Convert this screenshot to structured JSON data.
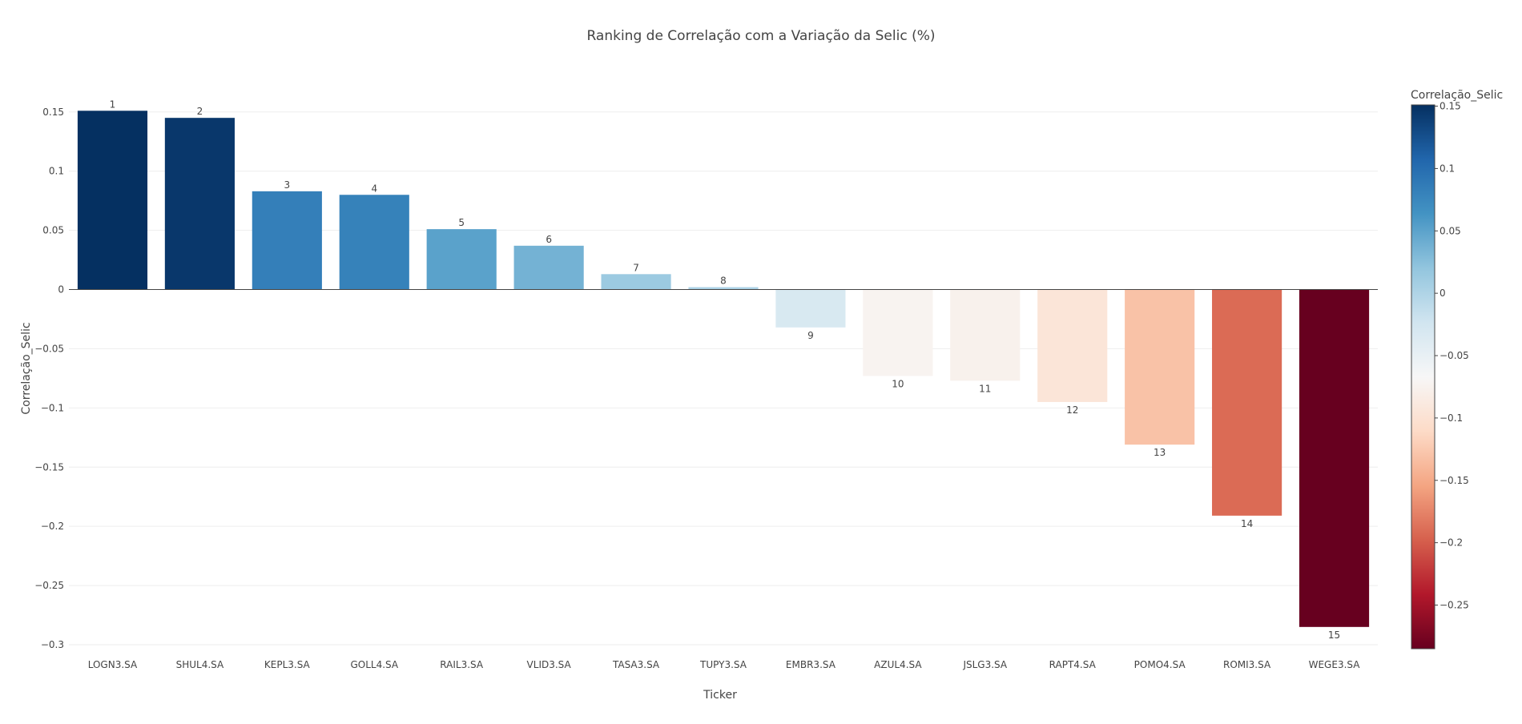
{
  "chart_data": {
    "type": "bar",
    "title": "Ranking de Correlação com a Variação da Selic (%)",
    "xlabel": "Ticker",
    "ylabel": "Correlação_Selic",
    "categories": [
      "LOGN3.SA",
      "SHUL4.SA",
      "KEPL3.SA",
      "GOLL4.SA",
      "RAIL3.SA",
      "VLID3.SA",
      "TASA3.SA",
      "TUPY3.SA",
      "EMBR3.SA",
      "AZUL4.SA",
      "JSLG3.SA",
      "RAPT4.SA",
      "POMO4.SA",
      "ROMI3.SA",
      "WEGE3.SA"
    ],
    "values": [
      0.151,
      0.145,
      0.083,
      0.08,
      0.051,
      0.037,
      0.013,
      0.002,
      -0.032,
      -0.073,
      -0.077,
      -0.095,
      -0.131,
      -0.191,
      -0.285
    ],
    "ranks": [
      "1",
      "2",
      "3",
      "4",
      "5",
      "6",
      "7",
      "8",
      "9",
      "10",
      "11",
      "12",
      "13",
      "14",
      "15"
    ],
    "ylim": [
      -0.3,
      0.16
    ],
    "yticks": [
      0.15,
      0.1,
      0.05,
      0,
      -0.05,
      -0.1,
      -0.15,
      -0.2,
      -0.25,
      -0.3
    ],
    "ytick_labels": [
      "0.15",
      "0.1",
      "0.05",
      "0",
      "−0.05",
      "−0.1",
      "−0.15",
      "−0.2",
      "−0.25",
      "−0.3"
    ],
    "grid": true,
    "colorbar": {
      "title": "Correlação_Selic",
      "range": [
        -0.285,
        0.151
      ],
      "ticks": [
        0.15,
        0.1,
        0.05,
        0,
        -0.05,
        -0.1,
        -0.15,
        -0.2,
        -0.25
      ],
      "tick_labels": [
        "0.15",
        "0.1",
        "0.05",
        "0",
        "−0.05",
        "−0.1",
        "−0.15",
        "−0.2",
        "−0.25"
      ],
      "colorscale": [
        "#67001f",
        "#b2182b",
        "#d6604d",
        "#f4a582",
        "#fddbc7",
        "#f7f7f7",
        "#d1e5f0",
        "#92c5de",
        "#4393c3",
        "#2166ac",
        "#053061"
      ]
    }
  }
}
